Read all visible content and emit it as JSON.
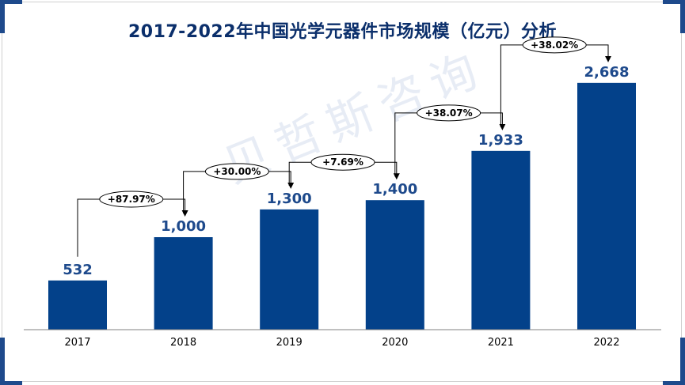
{
  "chart_data": {
    "type": "bar",
    "title": "2017-2022年中国光学元器件市场规模（亿元）分析",
    "categories": [
      "2017",
      "2018",
      "2019",
      "2020",
      "2021",
      "2022"
    ],
    "values": [
      532,
      1000,
      1300,
      1400,
      1933,
      2668
    ],
    "value_labels": [
      "532",
      "1,000",
      "1,300",
      "1,400",
      "1,933",
      "2,668"
    ],
    "growth_labels": [
      "+87.97%",
      "+30.00%",
      "+7.69%",
      "+38.07%",
      "+38.02%"
    ],
    "ylim": [
      0,
      3000
    ],
    "grid": false,
    "colors": {
      "bar": "#03418a",
      "value_label": "#1e4a8c",
      "connector": "#000000"
    }
  },
  "watermark": "贝哲斯咨询"
}
